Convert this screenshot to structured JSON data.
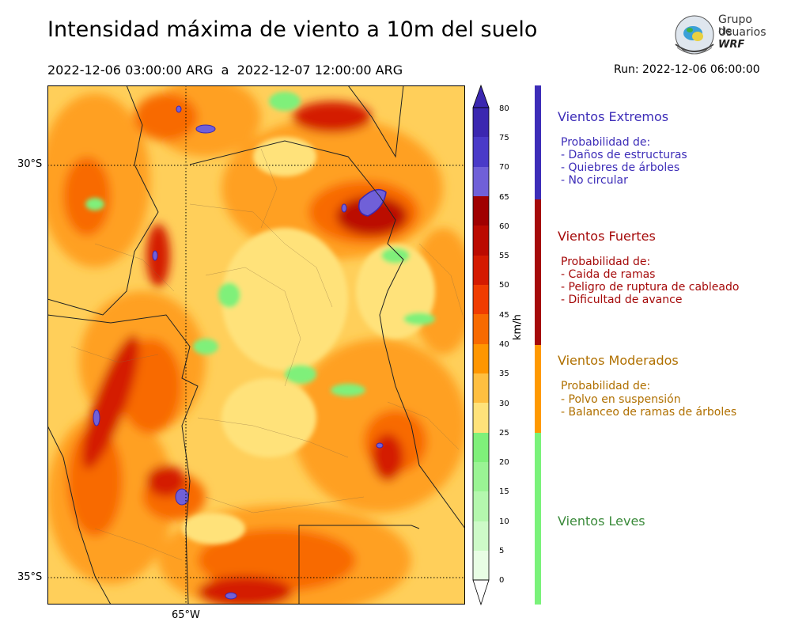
{
  "header": {
    "title": "Intensidad máxima de viento a 10m del suelo",
    "period": "2022-12-06 03:00:00 ARG  a  2022-12-07 12:00:00 ARG",
    "run": "Run: 2022-12-06 06:00:00"
  },
  "logo": {
    "line1": "Grupo de",
    "line2": "Usuarios",
    "line3": "WRF"
  },
  "map": {
    "lat_labels": [
      "30°S",
      "35°S"
    ],
    "lon_labels": [
      "65°W"
    ]
  },
  "colorbar": {
    "unit": "km/h",
    "ticks": [
      "80",
      "75",
      "70",
      "65",
      "60",
      "55",
      "50",
      "45",
      "40",
      "35",
      "30",
      "25",
      "20",
      "15",
      "10",
      "5",
      "0"
    ],
    "colors": {
      "75-80": "#3b27b0",
      "70-75": "#4a3ac8",
      "65-70": "#7060d8",
      "60-65": "#a00000",
      "55-60": "#bb0a00",
      "50-55": "#d41a00",
      "45-50": "#f03c00",
      "40-45": "#f86a00",
      "35-40": "#ff9600",
      "30-35": "#ffbf40",
      "25-30": "#ffe27a",
      "20-25": "#7ff07a",
      "15-20": "#9af494",
      "10-15": "#b4f7ae",
      "5-10": "#cdfac8",
      "0-5": "#e8fde4"
    }
  },
  "categories": [
    {
      "name": "Vientos Extremos",
      "color": "#3d2db8",
      "items": [
        "Probabilidad de:",
        "- Daños de estructuras",
        "- Quiebres de árboles",
        "- No circular"
      ]
    },
    {
      "name": "Vientos Fuertes",
      "color": "#a50a0a",
      "items": [
        "Probabilidad de:",
        "- Caida de ramas",
        "- Peligro de ruptura de cableado",
        "- Dificultad de avance"
      ]
    },
    {
      "name": "Vientos Moderados",
      "color": "#b07000",
      "bar_color": "#ff9900",
      "items": [
        "Probabilidad de:",
        "- Polvo en suspensión",
        "- Balanceo de ramas de árboles"
      ]
    },
    {
      "name": "Vientos Leves",
      "color": "#3a8a3a",
      "bar_color": "#7af27a",
      "items": []
    }
  ]
}
